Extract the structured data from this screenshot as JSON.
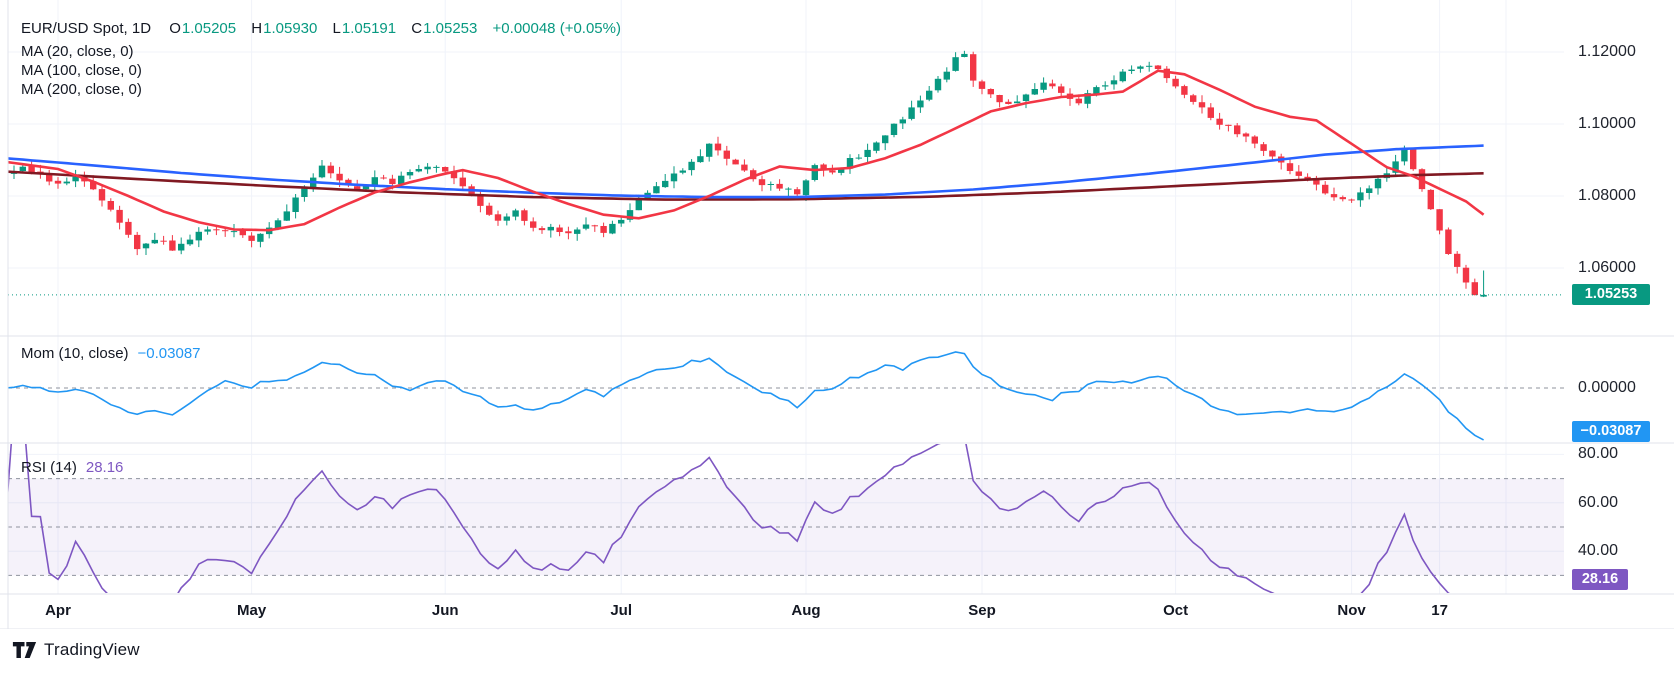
{
  "legend": {
    "symbol_title": "EUR/USD Spot, 1D",
    "o_label": "O",
    "o": "1.05205",
    "h_label": "H",
    "h": "1.05930",
    "l_label": "L",
    "l": "1.05191",
    "c_label": "C",
    "c": "1.05253",
    "change": "+0.00048 (+0.05%)",
    "ma20": "MA (20, close, 0)",
    "ma100": "MA (100, close, 0)",
    "ma200": "MA (200, close, 0)",
    "mom_label": "Mom (10, close)",
    "mom_value": "−0.03087",
    "rsi_label": "RSI (14)",
    "rsi_value": "28.16"
  },
  "axes": {
    "price_badge": {
      "label": "1.05253",
      "color": "#089981"
    },
    "mom_badge": {
      "label": "−0.03087",
      "color": "#2196F3"
    },
    "rsi_badge": {
      "label": "28.16",
      "color": "#7E57C2"
    }
  },
  "footer": {
    "brand": "TradingView"
  },
  "chart_data": {
    "type": "candlestick",
    "symbol": "EUR/USD Spot",
    "interval": "1D",
    "ohlc_last": {
      "o": 1.05205,
      "h": 1.0593,
      "l": 1.05191,
      "c": 1.05253,
      "change": 0.00048,
      "change_pct": 0.05
    },
    "price_axis": {
      "ticks": [
        "1.12000",
        "1.10000",
        "1.08000",
        "1.06000"
      ],
      "tick_values": [
        1.12,
        1.1,
        1.08,
        1.06
      ],
      "last_price": 1.05253
    },
    "mom_axis": {
      "tick": "0.00000",
      "zero": 0,
      "last_value": -0.03087
    },
    "rsi_axis": {
      "ticks": [
        "80.00",
        "60.00",
        "40.00"
      ],
      "tick_values": [
        80,
        60,
        40
      ],
      "dashed_levels": [
        70,
        50,
        30
      ],
      "last_value": 28.16
    },
    "x_axis": {
      "ticks": [
        {
          "label": "Apr",
          "index": 6
        },
        {
          "label": "May",
          "index": 28
        },
        {
          "label": "Jun",
          "index": 50
        },
        {
          "label": "Jul",
          "index": 70
        },
        {
          "label": "Aug",
          "index": 91
        },
        {
          "label": "Sep",
          "index": 111
        },
        {
          "label": "Oct",
          "index": 133
        },
        {
          "label": "Nov",
          "index": 153
        },
        {
          "label": "17",
          "index": 163
        }
      ]
    },
    "candles": {
      "count": 169,
      "close_anchors": [
        [
          0,
          1.087
        ],
        [
          2,
          1.0878
        ],
        [
          4,
          1.086
        ],
        [
          6,
          1.0832
        ],
        [
          8,
          1.0845
        ],
        [
          10,
          1.0825
        ],
        [
          12,
          1.0762
        ],
        [
          14,
          1.069
        ],
        [
          15,
          1.065
        ],
        [
          16,
          1.0665
        ],
        [
          17,
          1.0685
        ],
        [
          19,
          1.0655
        ],
        [
          21,
          1.0685
        ],
        [
          23,
          1.0715
        ],
        [
          25,
          1.071
        ],
        [
          27,
          1.0685
        ],
        [
          28,
          1.068
        ],
        [
          30,
          1.0718
        ],
        [
          32,
          1.0755
        ],
        [
          34,
          1.0828
        ],
        [
          36,
          1.088
        ],
        [
          38,
          1.0848
        ],
        [
          40,
          1.0818
        ],
        [
          42,
          1.0858
        ],
        [
          44,
          1.084
        ],
        [
          46,
          1.0862
        ],
        [
          48,
          1.0888
        ],
        [
          50,
          1.0868
        ],
        [
          52,
          1.082
        ],
        [
          54,
          1.0778
        ],
        [
          56,
          1.0728
        ],
        [
          58,
          1.0758
        ],
        [
          60,
          1.071
        ],
        [
          62,
          1.0715
        ],
        [
          64,
          1.0692
        ],
        [
          66,
          1.0725
        ],
        [
          68,
          1.07
        ],
        [
          70,
          1.074
        ],
        [
          72,
          1.0788
        ],
        [
          74,
          1.083
        ],
        [
          76,
          1.0858
        ],
        [
          78,
          1.0888
        ],
        [
          80,
          1.0948
        ],
        [
          82,
          1.091
        ],
        [
          84,
          1.0868
        ],
        [
          86,
          1.0838
        ],
        [
          88,
          1.082
        ],
        [
          90,
          1.0805
        ],
        [
          92,
          1.0888
        ],
        [
          94,
          1.0858
        ],
        [
          96,
          1.0898
        ],
        [
          98,
          1.093
        ],
        [
          100,
          1.0968
        ],
        [
          102,
          1.102
        ],
        [
          104,
          1.1068
        ],
        [
          106,
          1.1118
        ],
        [
          108,
          1.1178
        ],
        [
          109,
          1.1188
        ],
        [
          110,
          1.1128
        ],
        [
          112,
          1.1078
        ],
        [
          114,
          1.1048
        ],
        [
          116,
          1.1078
        ],
        [
          118,
          1.1108
        ],
        [
          120,
          1.1088
        ],
        [
          122,
          1.1058
        ],
        [
          124,
          1.1098
        ],
        [
          126,
          1.1128
        ],
        [
          128,
          1.1158
        ],
        [
          130,
          1.1168
        ],
        [
          132,
          1.1128
        ],
        [
          133,
          1.1098
        ],
        [
          135,
          1.1058
        ],
        [
          137,
          1.1018
        ],
        [
          139,
          1.0988
        ],
        [
          141,
          1.0958
        ],
        [
          143,
          1.0925
        ],
        [
          145,
          1.0888
        ],
        [
          147,
          1.0858
        ],
        [
          149,
          1.0828
        ],
        [
          151,
          1.0798
        ],
        [
          153,
          1.0785
        ],
        [
          155,
          1.082
        ],
        [
          157,
          1.0865
        ],
        [
          159,
          1.0935
        ],
        [
          160,
          1.0878
        ],
        [
          161,
          1.082
        ],
        [
          162,
          1.076
        ],
        [
          163,
          1.07
        ],
        [
          164,
          1.064
        ],
        [
          165,
          1.0598
        ],
        [
          166,
          1.0565
        ],
        [
          167,
          1.0522
        ],
        [
          168,
          1.05253
        ]
      ]
    },
    "ma20_anchors": [
      [
        0,
        1.0895
      ],
      [
        6,
        1.0875
      ],
      [
        10,
        1.084
      ],
      [
        14,
        1.08
      ],
      [
        18,
        1.0757
      ],
      [
        22,
        1.0727
      ],
      [
        26,
        1.0707
      ],
      [
        30,
        1.0705
      ],
      [
        34,
        1.0722
      ],
      [
        38,
        1.0768
      ],
      [
        42,
        1.081
      ],
      [
        46,
        1.0838
      ],
      [
        50,
        1.0862
      ],
      [
        52,
        1.0872
      ],
      [
        56,
        1.085
      ],
      [
        60,
        1.0812
      ],
      [
        64,
        1.0778
      ],
      [
        68,
        1.0748
      ],
      [
        72,
        1.0738
      ],
      [
        76,
        1.076
      ],
      [
        80,
        1.08
      ],
      [
        84,
        1.0845
      ],
      [
        88,
        1.0882
      ],
      [
        92,
        1.0872
      ],
      [
        96,
        1.0878
      ],
      [
        100,
        1.0905
      ],
      [
        104,
        1.0942
      ],
      [
        108,
        1.0988
      ],
      [
        112,
        1.1035
      ],
      [
        116,
        1.1058
      ],
      [
        120,
        1.1075
      ],
      [
        124,
        1.1082
      ],
      [
        127,
        1.109
      ],
      [
        131,
        1.1148
      ],
      [
        134,
        1.1138
      ],
      [
        138,
        1.1095
      ],
      [
        142,
        1.1048
      ],
      [
        146,
        1.102
      ],
      [
        149,
        1.101
      ],
      [
        153,
        1.0945
      ],
      [
        157,
        1.088
      ],
      [
        160,
        1.0855
      ],
      [
        163,
        1.082
      ],
      [
        166,
        1.0785
      ],
      [
        168,
        1.0748
      ]
    ],
    "ma100_anchors": [
      [
        0,
        1.0905
      ],
      [
        10,
        1.0885
      ],
      [
        20,
        1.0864
      ],
      [
        30,
        1.0846
      ],
      [
        40,
        1.0831
      ],
      [
        50,
        1.0819
      ],
      [
        60,
        1.0809
      ],
      [
        70,
        1.0801
      ],
      [
        80,
        1.0797
      ],
      [
        90,
        1.0797
      ],
      [
        100,
        1.0804
      ],
      [
        110,
        1.0818
      ],
      [
        120,
        1.0838
      ],
      [
        130,
        1.0862
      ],
      [
        140,
        1.0888
      ],
      [
        150,
        1.0915
      ],
      [
        158,
        1.093
      ],
      [
        168,
        1.094
      ]
    ],
    "ma200_anchors": [
      [
        0,
        1.0868
      ],
      [
        15,
        1.0847
      ],
      [
        30,
        1.0828
      ],
      [
        45,
        1.081
      ],
      [
        60,
        1.0797
      ],
      [
        75,
        1.079
      ],
      [
        90,
        1.0791
      ],
      [
        105,
        1.0798
      ],
      [
        120,
        1.0812
      ],
      [
        135,
        1.083
      ],
      [
        150,
        1.0848
      ],
      [
        160,
        1.0858
      ],
      [
        168,
        1.0863
      ]
    ],
    "indicators": {
      "momentum": {
        "name": "Mom",
        "length": 10,
        "source": "close",
        "last": -0.03087
      },
      "rsi": {
        "name": "RSI",
        "length": 14,
        "last": 28.16,
        "band": [
          30,
          70
        ]
      }
    },
    "colors": {
      "up": "#089981",
      "down": "#F23645",
      "ma20": "#F23645",
      "ma100": "#2962FF",
      "ma200": "#801922",
      "mom": "#2196F3",
      "rsi": "#7E57C2",
      "grid": "#F0F3FA",
      "separator": "#E0E3EB",
      "dashed": "#8F939E",
      "last_price": "#089981",
      "text": "#131722"
    }
  }
}
